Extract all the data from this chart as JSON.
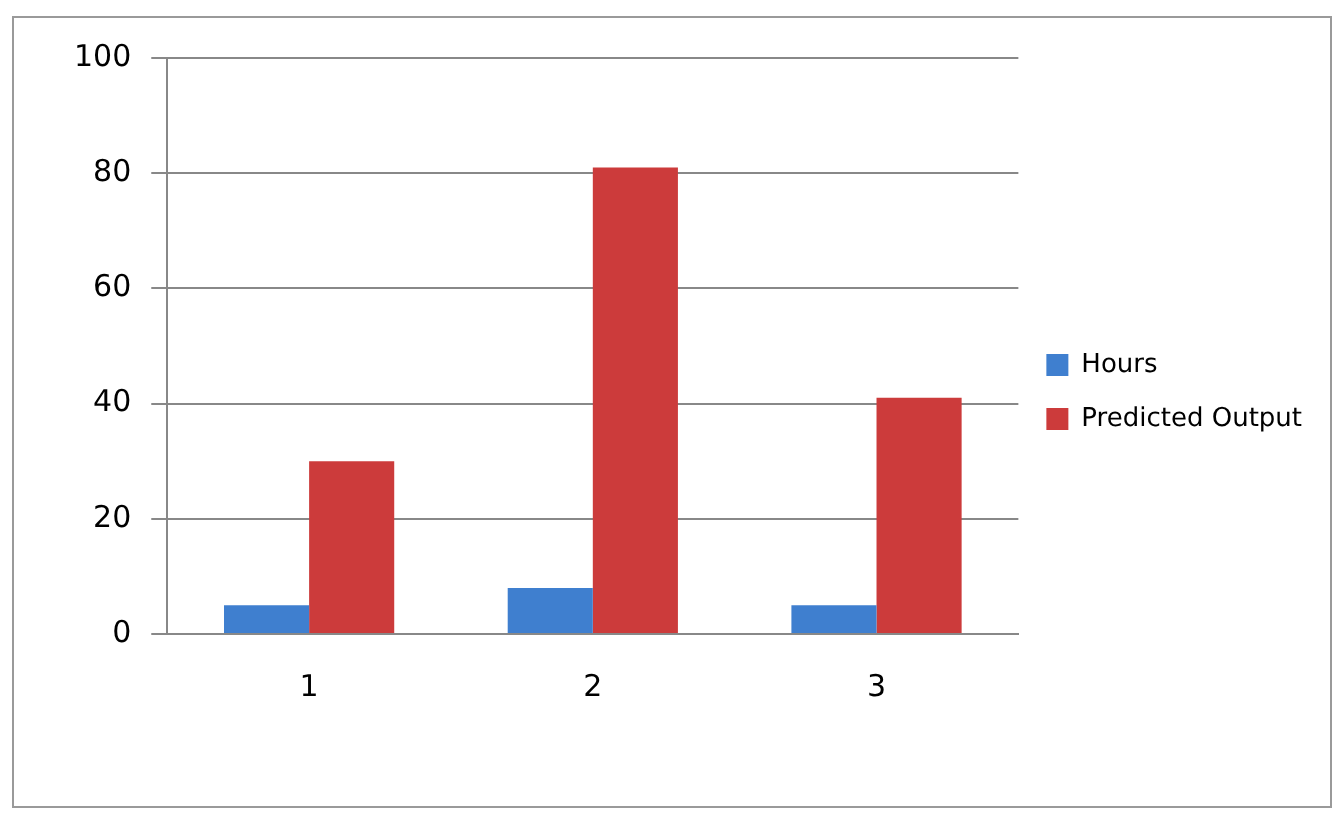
{
  "chart_data": {
    "type": "bar",
    "categories": [
      "1",
      "2",
      "3"
    ],
    "series": [
      {
        "name": "Hours",
        "color": "#3f7fcf",
        "values": [
          5,
          8,
          5
        ]
      },
      {
        "name": "Predicted Output",
        "color": "#cc3b3b",
        "values": [
          30,
          81,
          41
        ]
      }
    ],
    "ylim": [
      0,
      100
    ],
    "yticks": [
      0,
      20,
      40,
      60,
      80,
      100
    ],
    "grid": "y",
    "legend": "right"
  }
}
